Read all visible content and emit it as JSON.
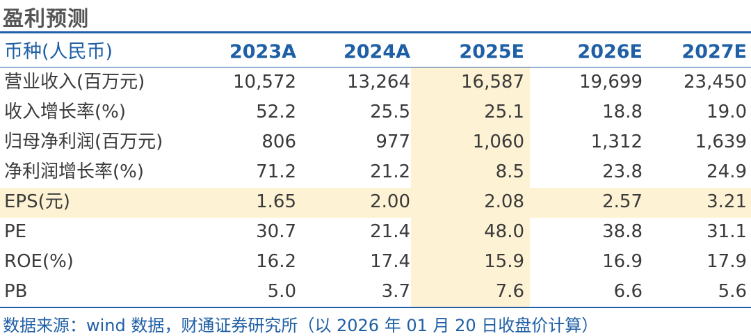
{
  "title": "盈利预测",
  "table": {
    "header_label": "币种(人民币)",
    "columns": [
      "2023A",
      "2024A",
      "2025E",
      "2026E",
      "2027E"
    ],
    "rows": [
      {
        "label": "营业收入(百万元)",
        "values": [
          "10,572",
          "13,264",
          "16,587",
          "19,699",
          "23,450"
        ]
      },
      {
        "label": "收入增长率(%)",
        "values": [
          "52.2",
          "25.5",
          "25.1",
          "18.8",
          "19.0"
        ]
      },
      {
        "label": "归母净利润(百万元)",
        "values": [
          "806",
          "977",
          "1,060",
          "1,312",
          "1,639"
        ]
      },
      {
        "label": "净利润增长率(%)",
        "values": [
          "71.2",
          "21.2",
          "8.5",
          "23.8",
          "24.9"
        ]
      },
      {
        "label": "EPS(元)",
        "values": [
          "1.65",
          "2.00",
          "2.08",
          "2.57",
          "3.21"
        ]
      },
      {
        "label": "PE",
        "values": [
          "30.7",
          "21.4",
          "48.0",
          "38.8",
          "31.1"
        ]
      },
      {
        "label": "ROE(%)",
        "values": [
          "16.2",
          "17.4",
          "15.9",
          "16.9",
          "17.9"
        ]
      },
      {
        "label": "PB",
        "values": [
          "5.0",
          "3.7",
          "7.6",
          "6.6",
          "5.6"
        ]
      }
    ]
  },
  "source": "数据来源：wind 数据，财通证券研究所（以 2026 年 01 月 20 日收盘价计算）",
  "colors": {
    "accent": "#1f5fa5",
    "highlight": "#fdf2d3",
    "text": "#3a3a3a"
  }
}
